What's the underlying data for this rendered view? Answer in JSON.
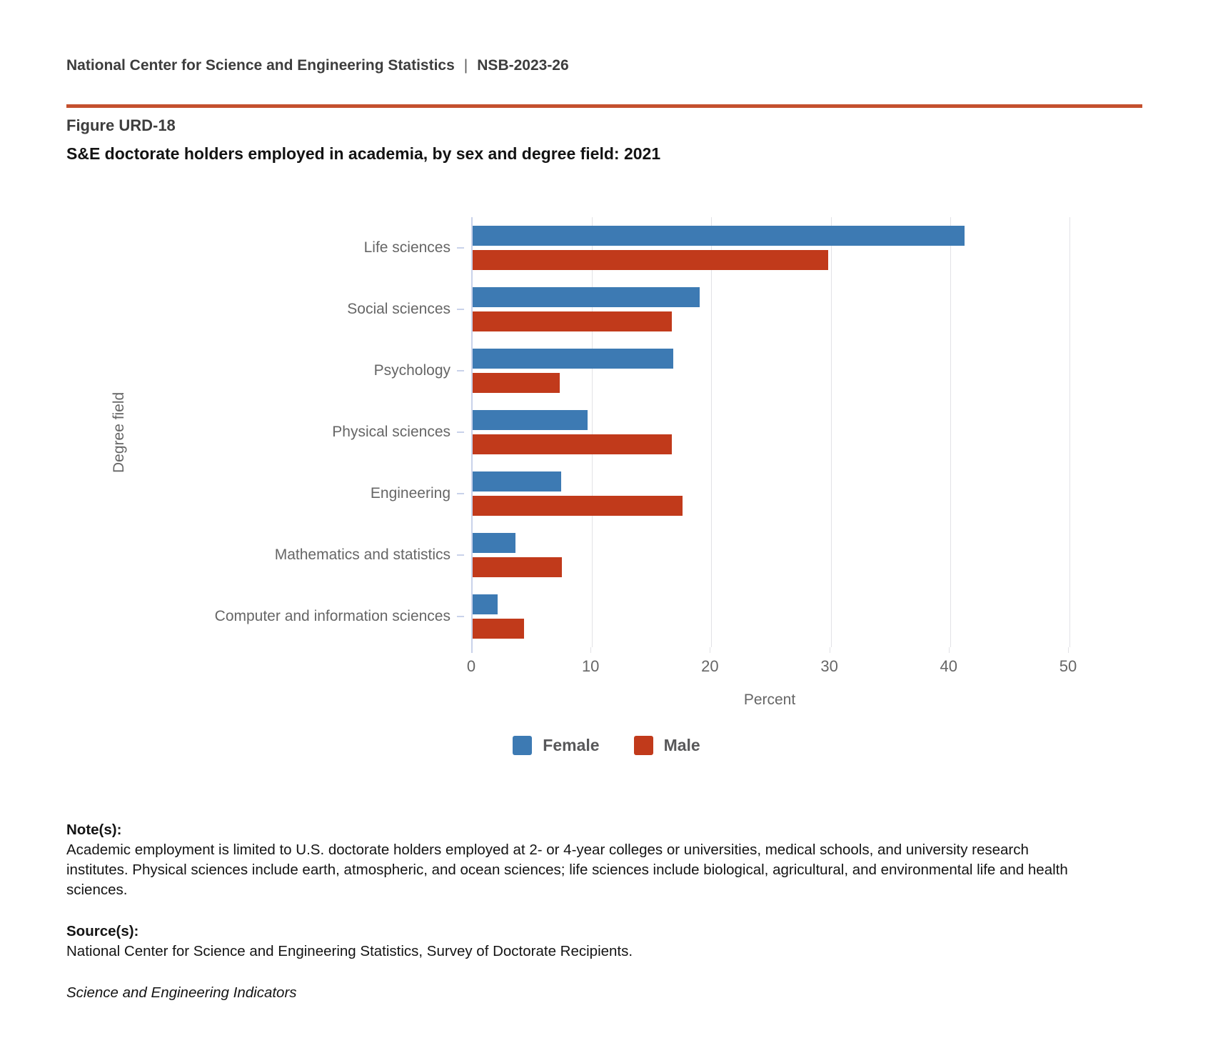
{
  "header": {
    "org": "National Center for Science and Engineering Statistics",
    "separator": "|",
    "report_id": "NSB-2023-26"
  },
  "figure": {
    "label": "Figure URD-18",
    "title": "S&E doctorate holders employed in academia, by sex and degree field: 2021"
  },
  "chart_data": {
    "type": "bar",
    "orientation": "horizontal",
    "title": "S&E doctorate holders employed in academia, by sex and degree field: 2021",
    "categories": [
      "Life sciences",
      "Social sciences",
      "Psychology",
      "Physical sciences",
      "Engineering",
      "Mathematics and statistics",
      "Computer and information sciences"
    ],
    "series": [
      {
        "name": "Female",
        "color": "#3d7ab3",
        "values": [
          41.2,
          19.0,
          16.8,
          9.6,
          7.4,
          3.6,
          2.1
        ]
      },
      {
        "name": "Male",
        "color": "#c13a1b",
        "values": [
          29.8,
          16.7,
          7.3,
          16.7,
          17.6,
          7.5,
          4.3
        ]
      }
    ],
    "xlabel": "Percent",
    "ylabel": "Degree field",
    "xlim": [
      0,
      50
    ],
    "xticks": [
      0,
      10,
      20,
      30,
      40,
      50
    ],
    "grid": true,
    "legend_position": "bottom"
  },
  "colors": {
    "rule": "#c4502e",
    "axis_line": "#c9d2ea",
    "gridline": "#e2e2e6",
    "label_gray": "#666666",
    "legend_text": "#58585a"
  },
  "notes": {
    "heading": "Note(s):",
    "body": "Academic employment is limited to U.S. doctorate holders employed at 2- or 4-year colleges or universities, medical schools, and university research institutes. Physical sciences include earth, atmospheric, and ocean sciences; life sciences include biological, agricultural, and environmental life and health sciences."
  },
  "source": {
    "heading": "Source(s):",
    "body": "National Center for Science and Engineering Statistics, Survey of Doctorate Recipients."
  },
  "footer": {
    "publication": "Science and Engineering Indicators"
  }
}
